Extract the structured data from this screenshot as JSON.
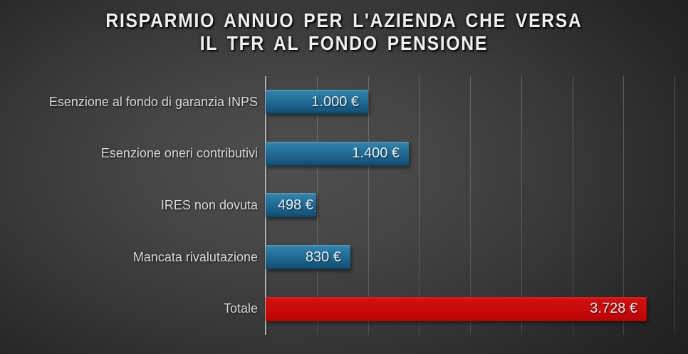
{
  "title": {
    "line1": "RISPARMIO ANNUO PER L'AZIENDA CHE VERSA",
    "line2": "IL TFR AL FONDO PENSIONE"
  },
  "chart_data": {
    "type": "bar",
    "orientation": "horizontal",
    "title": "RISPARMIO ANNUO PER L'AZIENDA CHE VERSA IL TFR AL FONDO PENSIONE",
    "categories": [
      "Esenzione al fondo di garanzia INPS",
      "Esenzione oneri contributivi",
      "IRES non dovuta",
      "Mancata rivalutazione",
      "Totale"
    ],
    "values": [
      1000,
      1400,
      498,
      830,
      3728
    ],
    "value_labels": [
      "1.000 €",
      "1.400 €",
      "498 €",
      "830 €",
      "3.728 €"
    ],
    "total_row_index": 4,
    "xlabel": "",
    "ylabel": "",
    "xlim": [
      0,
      4000
    ],
    "grid_step": 500,
    "grid": true,
    "legend": false,
    "colors": {
      "bar_default": "#1f6890",
      "bar_total": "#c70a0a",
      "background_center": "#4f4f4f",
      "background_edge": "#202020",
      "axis": "#b2b2b2",
      "text": "#dadada",
      "value_text": "#eaf0f4"
    }
  }
}
